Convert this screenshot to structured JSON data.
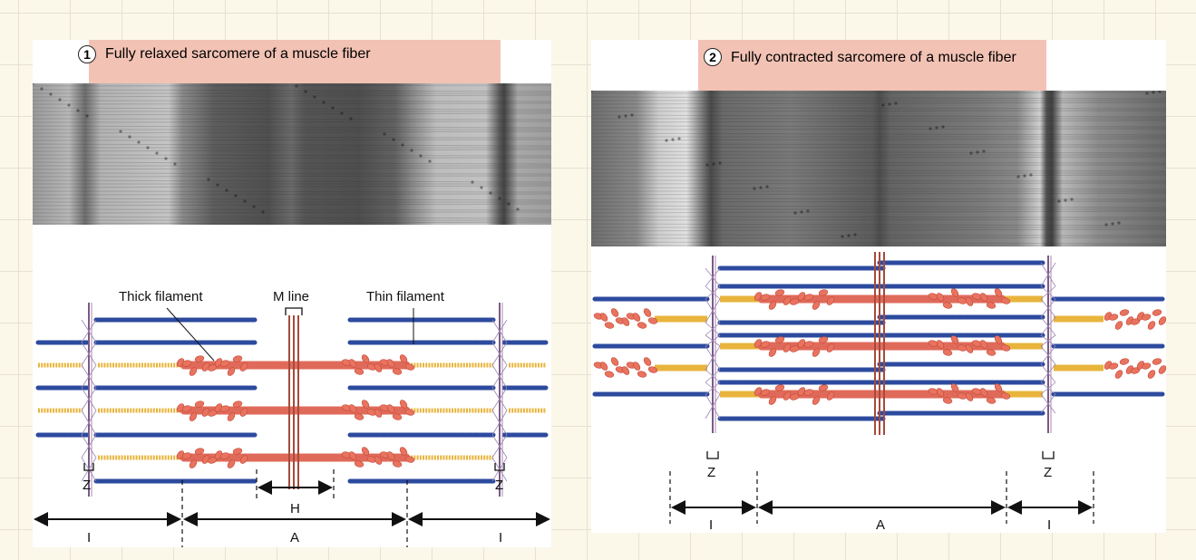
{
  "panel1": {
    "number": "1",
    "title": "Fully relaxed sarcomere of a muscle fiber",
    "labels": {
      "thick_filament": "Thick filament",
      "m_line": "M line",
      "thin_filament": "Thin filament",
      "z_left": "Z",
      "z_right": "Z",
      "h": "H",
      "i_left": "I",
      "a": "A",
      "i_right": "I"
    }
  },
  "panel2": {
    "number": "2",
    "title": "Fully contracted sarcomere of a muscle fiber",
    "labels": {
      "z_left": "Z",
      "z_right": "Z",
      "i_left": "I",
      "a": "A",
      "i_right": "I"
    }
  },
  "colors": {
    "actin": "#2c4a9e",
    "myosin": "#e06a5a",
    "myosin_head": "#e8735f",
    "titin": "#e8b43c",
    "z_line": "#7a5a88",
    "m_line": "#a64a3a",
    "title_bg": "#f2c2b4",
    "background": "#fbf8ea"
  }
}
